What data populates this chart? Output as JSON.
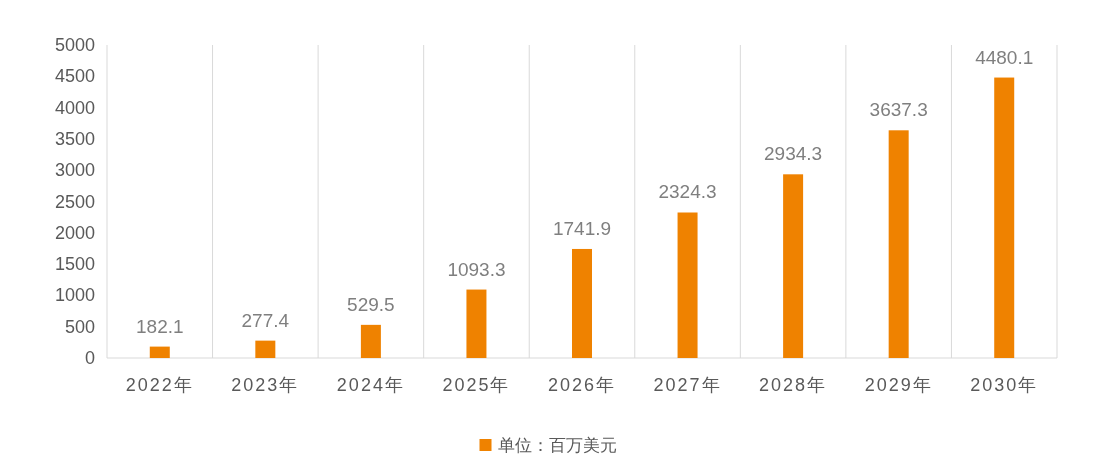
{
  "chart_data": {
    "type": "bar",
    "categories": [
      "2022年",
      "2023年",
      "2024年",
      "2025年",
      "2026年",
      "2027年",
      "2028年",
      "2029年",
      "2030年"
    ],
    "series": [
      {
        "name": "单位：百万美元",
        "color": "#ef8200",
        "values": [
          182.1,
          277.4,
          529.5,
          1093.3,
          1741.9,
          2324.3,
          2934.3,
          3637.3,
          4480.1
        ]
      }
    ],
    "ylim": [
      0,
      5000
    ],
    "yticks": [
      0,
      500,
      1000,
      1500,
      2000,
      2500,
      3000,
      3500,
      4000,
      4500,
      5000
    ],
    "grid": "x",
    "legend": "bottom",
    "data_labels": true
  }
}
